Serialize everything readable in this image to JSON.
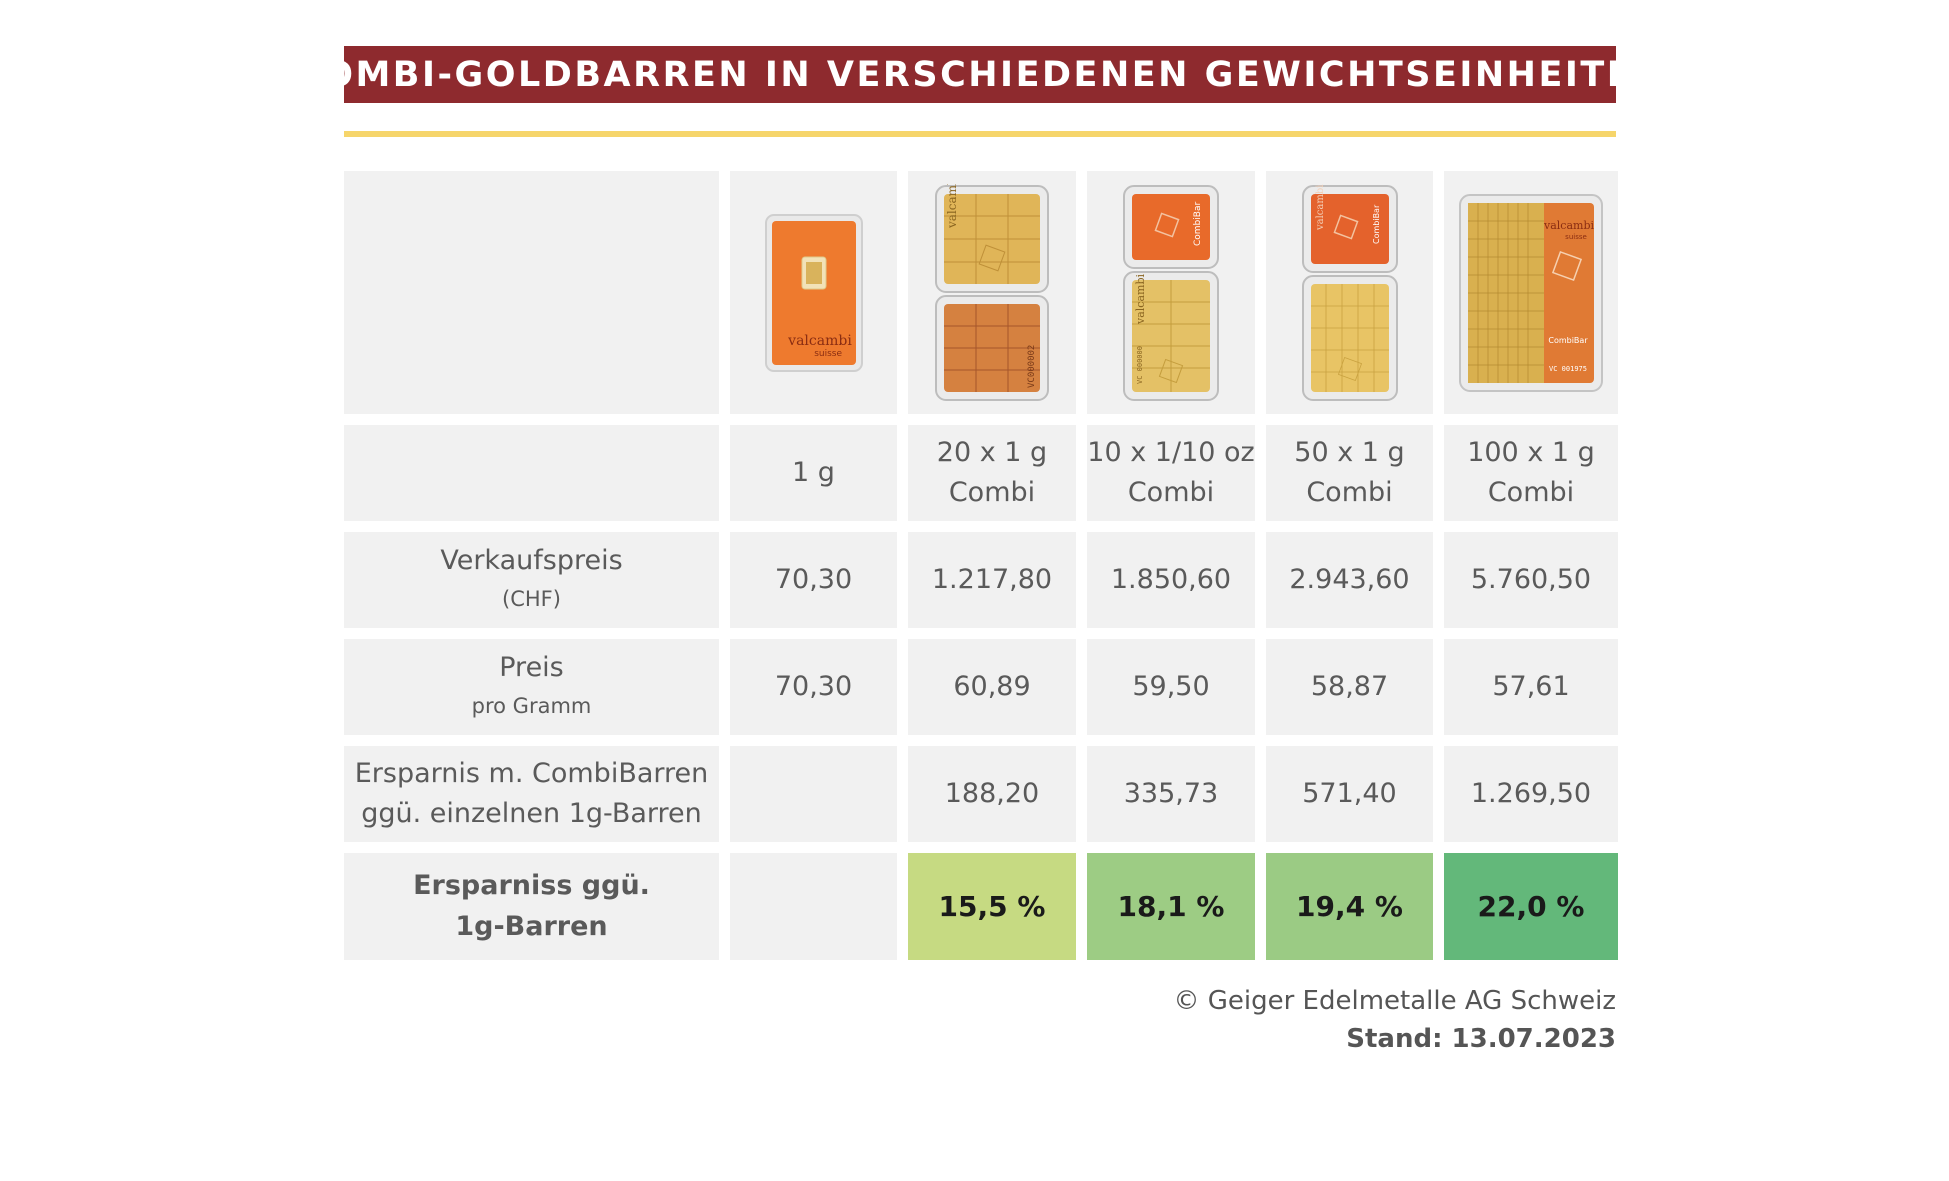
{
  "title": "COMBI-GOLDBARREN IN VERSCHIEDENEN GEWICHTSEINHEITEN",
  "colors": {
    "title_bg": "#8e2a2e",
    "accent_line": "#f6d56b",
    "cell_bg": "#f1f1f1",
    "pct_15_5": "#c6da82",
    "pct_18_1": "#9dcc84",
    "pct_19_4": "#9bcb84",
    "pct_22_0": "#63b87a"
  },
  "product_images": [
    {
      "icon": "valcambi-1g-bar-image",
      "brand": "valcambi",
      "brand_sub": "suisse"
    },
    {
      "icon": "combibar-20x1g-image",
      "brand": "valcambi",
      "serial": "VC000002"
    },
    {
      "icon": "combibar-10x1-10oz-image",
      "brand": "valcambi",
      "label": "CombiBar",
      "serial": "VC 000000"
    },
    {
      "icon": "combibar-50x1g-image",
      "brand": "valcambi",
      "label": "CombiBar"
    },
    {
      "icon": "combibar-100x1g-image",
      "brand": "valcambi",
      "brand_sub": "suisse",
      "label": "CombiBar",
      "serial": "VC 001975"
    }
  ],
  "columns": [
    {
      "line1": "1 g",
      "line2": ""
    },
    {
      "line1": "20 x 1 g",
      "line2": "Combi"
    },
    {
      "line1": "10 x 1/10 oz",
      "line2": "Combi"
    },
    {
      "line1": "50 x 1 g",
      "line2": "Combi"
    },
    {
      "line1": "100 x 1 g",
      "line2": "Combi"
    }
  ],
  "rows": {
    "verkaufspreis": {
      "label": "Verkaufspreis",
      "sub": "(CHF)",
      "values": [
        "70,30",
        "1.217,80",
        "1.850,60",
        "2.943,60",
        "5.760,50"
      ]
    },
    "preis_gramm": {
      "label": "Preis",
      "sub": "pro Gramm",
      "values": [
        "70,30",
        "60,89",
        "59,50",
        "58,87",
        "57,61"
      ]
    },
    "ersparnis_abs": {
      "label_line1": "Ersparnis m. CombiBarren",
      "label_line2": "ggü. einzelnen 1g-Barren",
      "values": [
        "",
        "188,20",
        "335,73",
        "571,40",
        "1.269,50"
      ]
    },
    "ersparnis_pct": {
      "label_line1": "Ersparniss ggü.",
      "label_line2": "1g-Barren",
      "values": [
        "",
        "15,5 %",
        "18,1 %",
        "19,4 %",
        "22,0 %"
      ]
    }
  },
  "footer": {
    "copyright": "© Geiger Edelmetalle AG Schweiz",
    "stand": "Stand: 13.07.2023"
  }
}
